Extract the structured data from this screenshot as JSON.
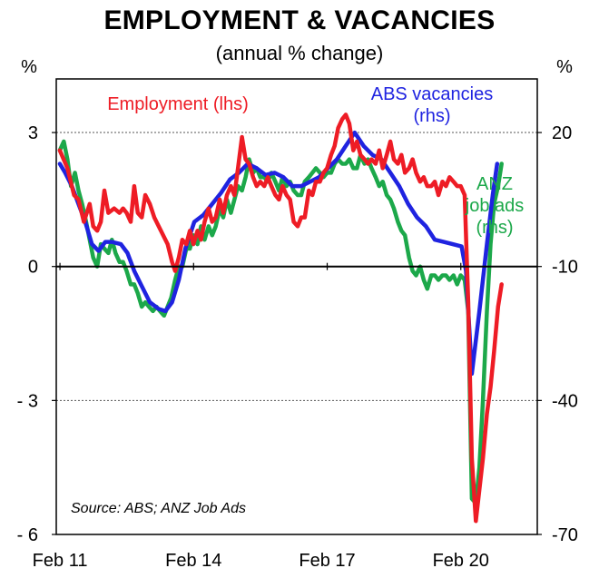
{
  "chart_data": {
    "type": "line",
    "title": "EMPLOYMENT & VACANCIES",
    "subtitle": "(annual % change)",
    "left_axis": {
      "unit": "%",
      "range": [
        -6,
        4.2
      ],
      "ticks": [
        3,
        0,
        -3,
        -6
      ],
      "tick_labels": [
        "3",
        "0",
        "- 3",
        "- 6"
      ]
    },
    "right_axis": {
      "unit": "%",
      "range": [
        -70,
        32
      ],
      "ticks": [
        20,
        -10,
        -40,
        -70
      ],
      "tick_labels": [
        "20",
        "-10",
        "-40",
        "-70"
      ]
    },
    "x_axis": {
      "range": [
        2011.0,
        2021.8
      ],
      "ticks": [
        2011.083,
        2014.083,
        2017.083,
        2020.083
      ],
      "tick_labels": [
        "Feb 11",
        "Feb 14",
        "Feb 17",
        "Feb 20"
      ]
    },
    "grid": "dashed horizontal at 3 and -3",
    "source": "Source: ABS; ANZ Job Ads",
    "series": [
      {
        "name": "Employment (lhs)",
        "axis": "left",
        "color": "#ee1c25",
        "points": [
          [
            2011.08,
            2.6
          ],
          [
            2011.25,
            2.2
          ],
          [
            2011.4,
            1.6
          ],
          [
            2011.5,
            1.5
          ],
          [
            2011.62,
            1.0
          ],
          [
            2011.75,
            1.4
          ],
          [
            2011.83,
            0.9
          ],
          [
            2011.92,
            0.8
          ],
          [
            2012.0,
            1.0
          ],
          [
            2012.08,
            1.7
          ],
          [
            2012.17,
            1.2
          ],
          [
            2012.3,
            1.3
          ],
          [
            2012.42,
            1.2
          ],
          [
            2012.5,
            1.3
          ],
          [
            2012.58,
            1.2
          ],
          [
            2012.67,
            1.0
          ],
          [
            2012.75,
            1.8
          ],
          [
            2012.83,
            1.2
          ],
          [
            2012.92,
            1.1
          ],
          [
            2013.0,
            1.6
          ],
          [
            2013.1,
            1.4
          ],
          [
            2013.2,
            1.1
          ],
          [
            2013.35,
            0.8
          ],
          [
            2013.5,
            0.5
          ],
          [
            2013.6,
            0.1
          ],
          [
            2013.67,
            -0.1
          ],
          [
            2013.75,
            0.2
          ],
          [
            2013.83,
            0.6
          ],
          [
            2013.92,
            0.5
          ],
          [
            2014.0,
            0.8
          ],
          [
            2014.08,
            0.5
          ],
          [
            2014.17,
            0.8
          ],
          [
            2014.25,
            0.6
          ],
          [
            2014.33,
            1.0
          ],
          [
            2014.42,
            1.3
          ],
          [
            2014.5,
            1.0
          ],
          [
            2014.58,
            1.1
          ],
          [
            2014.67,
            1.5
          ],
          [
            2014.75,
            1.2
          ],
          [
            2014.83,
            1.6
          ],
          [
            2014.92,
            1.8
          ],
          [
            2015.0,
            1.6
          ],
          [
            2015.08,
            2.2
          ],
          [
            2015.17,
            2.9
          ],
          [
            2015.25,
            2.4
          ],
          [
            2015.33,
            2.3
          ],
          [
            2015.42,
            2.0
          ],
          [
            2015.5,
            1.8
          ],
          [
            2015.58,
            1.9
          ],
          [
            2015.67,
            1.8
          ],
          [
            2015.75,
            2.0
          ],
          [
            2015.83,
            1.8
          ],
          [
            2015.92,
            1.6
          ],
          [
            2016.0,
            1.5
          ],
          [
            2016.08,
            1.8
          ],
          [
            2016.17,
            1.6
          ],
          [
            2016.25,
            1.5
          ],
          [
            2016.33,
            1.0
          ],
          [
            2016.42,
            0.9
          ],
          [
            2016.5,
            1.1
          ],
          [
            2016.58,
            1.1
          ],
          [
            2016.67,
            1.7
          ],
          [
            2016.75,
            1.6
          ],
          [
            2016.83,
            1.9
          ],
          [
            2016.92,
            1.9
          ],
          [
            2017.0,
            2.1
          ],
          [
            2017.08,
            2.2
          ],
          [
            2017.17,
            2.5
          ],
          [
            2017.25,
            2.7
          ],
          [
            2017.33,
            3.1
          ],
          [
            2017.42,
            3.3
          ],
          [
            2017.5,
            3.4
          ],
          [
            2017.58,
            3.2
          ],
          [
            2017.67,
            2.6
          ],
          [
            2017.75,
            2.8
          ],
          [
            2017.83,
            2.5
          ],
          [
            2017.92,
            2.4
          ],
          [
            2018.0,
            2.3
          ],
          [
            2018.08,
            2.4
          ],
          [
            2018.17,
            2.3
          ],
          [
            2018.25,
            2.6
          ],
          [
            2018.33,
            2.2
          ],
          [
            2018.42,
            2.5
          ],
          [
            2018.5,
            2.8
          ],
          [
            2018.58,
            2.4
          ],
          [
            2018.67,
            2.3
          ],
          [
            2018.75,
            2.5
          ],
          [
            2018.83,
            2.1
          ],
          [
            2018.92,
            2.2
          ],
          [
            2019.0,
            2.4
          ],
          [
            2019.08,
            2.1
          ],
          [
            2019.17,
            1.9
          ],
          [
            2019.25,
            2.0
          ],
          [
            2019.33,
            1.8
          ],
          [
            2019.42,
            1.8
          ],
          [
            2019.5,
            1.9
          ],
          [
            2019.58,
            1.6
          ],
          [
            2019.67,
            1.9
          ],
          [
            2019.75,
            1.8
          ],
          [
            2019.83,
            2.0
          ],
          [
            2019.92,
            1.9
          ],
          [
            2020.0,
            1.8
          ],
          [
            2020.08,
            1.8
          ],
          [
            2020.17,
            1.6
          ],
          [
            2020.25,
            -0.8
          ],
          [
            2020.33,
            -4.3
          ],
          [
            2020.42,
            -5.7
          ],
          [
            2020.5,
            -5.0
          ],
          [
            2020.58,
            -4.3
          ],
          [
            2020.67,
            -3.3
          ],
          [
            2020.75,
            -2.7
          ],
          [
            2020.83,
            -1.9
          ],
          [
            2020.92,
            -0.9
          ],
          [
            2021.0,
            -0.4
          ]
        ]
      },
      {
        "name": "ABS vacancies (rhs)",
        "axis": "right",
        "color": "#1f23e0",
        "points": [
          [
            2011.08,
            13
          ],
          [
            2011.2,
            11
          ],
          [
            2011.35,
            8
          ],
          [
            2011.5,
            4
          ],
          [
            2011.65,
            0
          ],
          [
            2011.8,
            -5
          ],
          [
            2011.95,
            -6.5
          ],
          [
            2012.1,
            -4.5
          ],
          [
            2012.25,
            -4.5
          ],
          [
            2012.45,
            -5
          ],
          [
            2012.6,
            -7
          ],
          [
            2012.75,
            -11
          ],
          [
            2012.9,
            -14
          ],
          [
            2013.1,
            -18
          ],
          [
            2013.3,
            -19.5
          ],
          [
            2013.45,
            -20
          ],
          [
            2013.6,
            -18
          ],
          [
            2013.75,
            -13
          ],
          [
            2013.9,
            -6
          ],
          [
            2014.1,
            0
          ],
          [
            2014.3,
            1.5
          ],
          [
            2014.5,
            4
          ],
          [
            2014.7,
            6.5
          ],
          [
            2014.9,
            9.5
          ],
          [
            2015.1,
            11
          ],
          [
            2015.3,
            13
          ],
          [
            2015.5,
            12
          ],
          [
            2015.7,
            10.5
          ],
          [
            2015.9,
            11
          ],
          [
            2016.1,
            10
          ],
          [
            2016.3,
            8
          ],
          [
            2016.5,
            8
          ],
          [
            2016.7,
            9
          ],
          [
            2016.9,
            10
          ],
          [
            2017.1,
            12
          ],
          [
            2017.3,
            14
          ],
          [
            2017.5,
            17
          ],
          [
            2017.7,
            20
          ],
          [
            2017.9,
            17
          ],
          [
            2018.1,
            15
          ],
          [
            2018.3,
            14
          ],
          [
            2018.5,
            11
          ],
          [
            2018.7,
            8
          ],
          [
            2018.9,
            4
          ],
          [
            2019.1,
            1
          ],
          [
            2019.3,
            -1
          ],
          [
            2019.5,
            -4
          ],
          [
            2019.7,
            -4.5
          ],
          [
            2019.9,
            -5
          ],
          [
            2020.1,
            -5.5
          ],
          [
            2020.2,
            -11
          ],
          [
            2020.33,
            -34
          ],
          [
            2020.5,
            -20
          ],
          [
            2020.67,
            -5
          ],
          [
            2020.8,
            6
          ],
          [
            2020.9,
            13
          ]
        ]
      },
      {
        "name": "ANZ job ads (rhs)",
        "axis": "right",
        "color": "#1ca84a",
        "points": [
          [
            2011.08,
            16
          ],
          [
            2011.17,
            18
          ],
          [
            2011.25,
            14
          ],
          [
            2011.33,
            8
          ],
          [
            2011.42,
            11
          ],
          [
            2011.5,
            7
          ],
          [
            2011.58,
            4
          ],
          [
            2011.67,
            0
          ],
          [
            2011.75,
            -4
          ],
          [
            2011.83,
            -8
          ],
          [
            2011.92,
            -10
          ],
          [
            2012.0,
            -5
          ],
          [
            2012.08,
            -6
          ],
          [
            2012.17,
            -7
          ],
          [
            2012.25,
            -4
          ],
          [
            2012.33,
            -7
          ],
          [
            2012.42,
            -9
          ],
          [
            2012.5,
            -9
          ],
          [
            2012.58,
            -11
          ],
          [
            2012.67,
            -14
          ],
          [
            2012.75,
            -14
          ],
          [
            2012.83,
            -16
          ],
          [
            2012.92,
            -19
          ],
          [
            2013.0,
            -18
          ],
          [
            2013.08,
            -19
          ],
          [
            2013.17,
            -20
          ],
          [
            2013.25,
            -19
          ],
          [
            2013.33,
            -20
          ],
          [
            2013.42,
            -21
          ],
          [
            2013.5,
            -19
          ],
          [
            2013.58,
            -17
          ],
          [
            2013.67,
            -13
          ],
          [
            2013.75,
            -10
          ],
          [
            2013.83,
            -10
          ],
          [
            2013.92,
            -6
          ],
          [
            2014.0,
            -6
          ],
          [
            2014.08,
            -3
          ],
          [
            2014.17,
            -5
          ],
          [
            2014.25,
            -1
          ],
          [
            2014.33,
            -4
          ],
          [
            2014.42,
            -1
          ],
          [
            2014.5,
            -3
          ],
          [
            2014.58,
            -1
          ],
          [
            2014.67,
            3
          ],
          [
            2014.75,
            1
          ],
          [
            2014.83,
            5
          ],
          [
            2014.92,
            2
          ],
          [
            2015.0,
            5
          ],
          [
            2015.08,
            8
          ],
          [
            2015.17,
            7
          ],
          [
            2015.25,
            10
          ],
          [
            2015.33,
            14
          ],
          [
            2015.42,
            11
          ],
          [
            2015.5,
            12
          ],
          [
            2015.58,
            10
          ],
          [
            2015.67,
            10
          ],
          [
            2015.75,
            9
          ],
          [
            2015.83,
            11
          ],
          [
            2015.92,
            9
          ],
          [
            2016.0,
            7
          ],
          [
            2016.08,
            10
          ],
          [
            2016.17,
            8
          ],
          [
            2016.25,
            9
          ],
          [
            2016.33,
            7
          ],
          [
            2016.42,
            6
          ],
          [
            2016.5,
            6
          ],
          [
            2016.58,
            9
          ],
          [
            2016.67,
            10
          ],
          [
            2016.75,
            11
          ],
          [
            2016.83,
            12
          ],
          [
            2016.92,
            11
          ],
          [
            2017.0,
            10
          ],
          [
            2017.08,
            11
          ],
          [
            2017.17,
            11
          ],
          [
            2017.25,
            13
          ],
          [
            2017.33,
            14
          ],
          [
            2017.42,
            13
          ],
          [
            2017.5,
            13
          ],
          [
            2017.58,
            14
          ],
          [
            2017.67,
            12
          ],
          [
            2017.75,
            12
          ],
          [
            2017.83,
            15
          ],
          [
            2017.92,
            13
          ],
          [
            2018.0,
            14
          ],
          [
            2018.08,
            12
          ],
          [
            2018.17,
            10
          ],
          [
            2018.25,
            8
          ],
          [
            2018.33,
            9
          ],
          [
            2018.42,
            6
          ],
          [
            2018.5,
            5
          ],
          [
            2018.58,
            3
          ],
          [
            2018.67,
            0
          ],
          [
            2018.75,
            -2
          ],
          [
            2018.83,
            -3
          ],
          [
            2018.92,
            -8
          ],
          [
            2019.0,
            -11
          ],
          [
            2019.08,
            -12
          ],
          [
            2019.17,
            -10
          ],
          [
            2019.25,
            -13
          ],
          [
            2019.33,
            -15
          ],
          [
            2019.42,
            -12
          ],
          [
            2019.5,
            -12
          ],
          [
            2019.58,
            -13
          ],
          [
            2019.67,
            -12
          ],
          [
            2019.75,
            -12
          ],
          [
            2019.83,
            -13
          ],
          [
            2019.92,
            -12
          ],
          [
            2020.0,
            -14
          ],
          [
            2020.08,
            -12
          ],
          [
            2020.17,
            -13
          ],
          [
            2020.25,
            -20
          ],
          [
            2020.33,
            -62
          ],
          [
            2020.42,
            -63
          ],
          [
            2020.5,
            -55
          ],
          [
            2020.58,
            -40
          ],
          [
            2020.67,
            -20
          ],
          [
            2020.75,
            -5
          ],
          [
            2020.83,
            4
          ],
          [
            2020.92,
            8
          ],
          [
            2021.0,
            13
          ]
        ]
      }
    ],
    "labels": {
      "employment": [
        "Employment (lhs)"
      ],
      "vacancies": [
        "ABS vacancies",
        "(rhs)"
      ],
      "jobads": [
        "ANZ",
        "job ads",
        "(rhs)"
      ]
    }
  }
}
